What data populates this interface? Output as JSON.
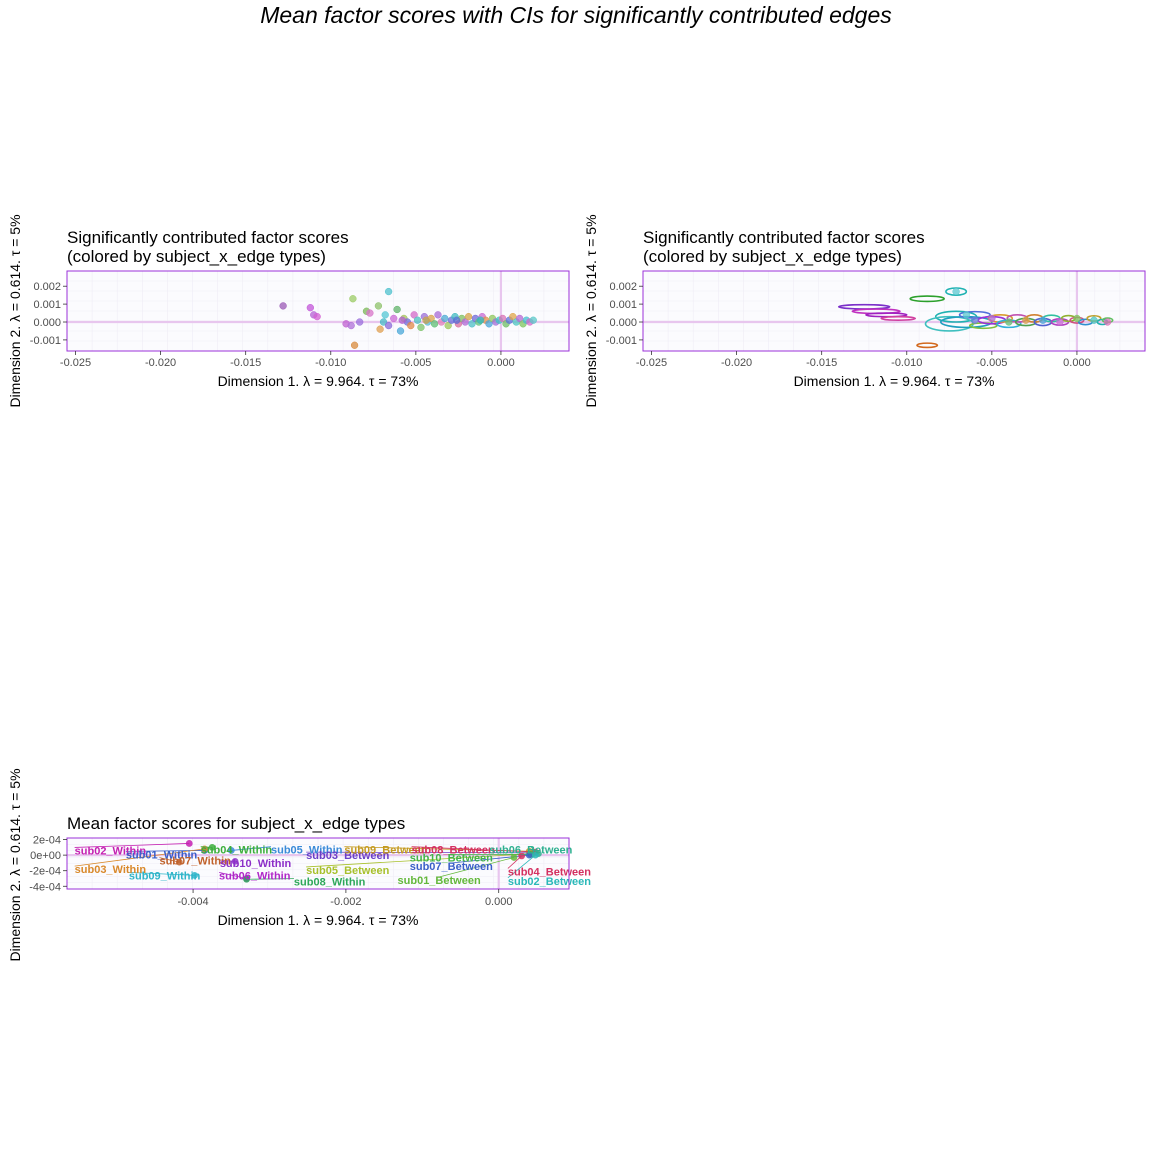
{
  "page_title": "Mean factor scores with CIs for significantly contributed edges",
  "colors": {
    "panel_border": "#9b30d9",
    "origin_line": "#e8c6ee",
    "grid": "#efedf6",
    "panel_bg": "#fbfbfe"
  },
  "chart_data": [
    {
      "type": "scatter",
      "title_lines": [
        "Significantly contributed factor scores",
        "(colored by subject_x_edge types)"
      ],
      "xlabel": "Dimension 1.   λ = 9.964.  τ = 73%",
      "ylabel": "Dimension 2.  λ = 0.614.  τ = 5%",
      "xlim": [
        -0.0255,
        0.004
      ],
      "ylim": [
        -0.00162,
        0.00285
      ],
      "xticks": [
        -0.025,
        -0.02,
        -0.015,
        -0.01,
        -0.005,
        0.0
      ],
      "xtick_labels": [
        "-0.025",
        "-0.020",
        "-0.015",
        "-0.010",
        "-0.005",
        "0.000"
      ],
      "yticks": [
        0.002,
        0.001,
        0.0,
        -0.001
      ],
      "ytick_labels": [
        "0.002",
        "0.001",
        "0.000",
        "-0.001"
      ],
      "grid": true,
      "points": [
        [
          -0.0128,
          0.0009,
          "#9b59b6"
        ],
        [
          -0.0112,
          0.0008,
          "#c356d9"
        ],
        [
          -0.011,
          0.0004,
          "#b45fd3"
        ],
        [
          -0.0108,
          0.0003,
          "#d35fd3"
        ],
        [
          -0.0087,
          0.0013,
          "#9ccc65"
        ],
        [
          -0.0091,
          -0.0001,
          "#c060d0"
        ],
        [
          -0.0088,
          -0.0002,
          "#b070d8"
        ],
        [
          -0.0086,
          -0.0013,
          "#d88a3c"
        ],
        [
          -0.0083,
          0.0,
          "#9b6fdc"
        ],
        [
          -0.0079,
          0.0006,
          "#7cb85a"
        ],
        [
          -0.0077,
          0.0005,
          "#d874c8"
        ],
        [
          -0.0072,
          0.0009,
          "#8dc16a"
        ],
        [
          -0.0071,
          -0.0004,
          "#e0a050"
        ],
        [
          -0.0069,
          0.0,
          "#46b7c4"
        ],
        [
          -0.0068,
          0.0004,
          "#56c7d4"
        ],
        [
          -0.0066,
          0.0017,
          "#4fc1ce"
        ],
        [
          -0.0066,
          -0.0002,
          "#8a6ad8"
        ],
        [
          -0.0063,
          0.0002,
          "#c96ad3"
        ],
        [
          -0.0061,
          0.0007,
          "#60b36a"
        ],
        [
          -0.0059,
          -0.0005,
          "#4aa8d8"
        ],
        [
          -0.0057,
          0.0002,
          "#a6c45a"
        ],
        [
          -0.0055,
          0.0,
          "#6f6cd6"
        ],
        [
          -0.0053,
          -0.0002,
          "#e08a4a"
        ],
        [
          -0.0051,
          0.0004,
          "#d36ac8"
        ],
        [
          -0.0049,
          0.0001,
          "#4bc1c0"
        ],
        [
          -0.0047,
          -0.0003,
          "#7ec46a"
        ],
        [
          -0.0045,
          0.0003,
          "#9b6fd8"
        ],
        [
          -0.0043,
          0.0,
          "#59b8d1"
        ],
        [
          -0.0041,
          0.0002,
          "#d8a34a"
        ],
        [
          -0.0039,
          -0.0001,
          "#5fbf74"
        ],
        [
          -0.0037,
          0.0004,
          "#a76ad5"
        ],
        [
          -0.0035,
          0.0,
          "#e07cb8"
        ],
        [
          -0.0033,
          0.0002,
          "#4ca9d3"
        ],
        [
          -0.0031,
          -0.0002,
          "#9cc85a"
        ],
        [
          -0.0029,
          0.0001,
          "#6a6fd8"
        ],
        [
          -0.0027,
          0.0003,
          "#3fb9c0"
        ],
        [
          -0.0025,
          -0.0001,
          "#d86f9b"
        ],
        [
          -0.0023,
          0.0002,
          "#7fbf5f"
        ],
        [
          -0.0021,
          0.0,
          "#b06ad3"
        ],
        [
          -0.0019,
          0.0003,
          "#d6a34a"
        ],
        [
          -0.0017,
          -0.0001,
          "#4dc0c7"
        ],
        [
          -0.0015,
          0.0002,
          "#7068d8"
        ],
        [
          -0.0013,
          0.0,
          "#5fc07a"
        ],
        [
          -0.0011,
          0.0003,
          "#c86ad3"
        ],
        [
          -0.0009,
          0.0001,
          "#e0904a"
        ],
        [
          -0.0007,
          -0.0001,
          "#4aa6d8"
        ],
        [
          -0.0005,
          0.0002,
          "#8fc75c"
        ],
        [
          -0.0003,
          0.0,
          "#a36fd6"
        ],
        [
          -0.0001,
          0.0001,
          "#3ec4c4"
        ],
        [
          0.0001,
          0.0002,
          "#d873b5"
        ],
        [
          0.0003,
          -0.0001,
          "#6fbf65"
        ],
        [
          0.0005,
          0.0001,
          "#5c73d9"
        ],
        [
          0.0007,
          0.0003,
          "#e0a54a"
        ],
        [
          0.0009,
          0.0,
          "#4cc6c2"
        ],
        [
          0.0011,
          0.0002,
          "#b76ad3"
        ],
        [
          0.0013,
          -0.0001,
          "#7fc55f"
        ],
        [
          0.0015,
          0.0001,
          "#46bcd0"
        ],
        [
          0.0017,
          0.0,
          "#d66ac8"
        ],
        [
          0.0019,
          0.0001,
          "#5ac8c8"
        ],
        [
          -0.0058,
          0.0001,
          "#b15fd0"
        ],
        [
          -0.0044,
          0.0001,
          "#c7a24e"
        ],
        [
          -0.0026,
          0.0001,
          "#5a6fd4"
        ],
        [
          -0.0012,
          0.0001,
          "#36b8b8"
        ]
      ]
    },
    {
      "type": "scatter",
      "title_lines": [
        "Significantly contributed factor scores",
        "(colored by subject_x_edge types)"
      ],
      "xlabel": "Dimension 1.   λ = 9.964.  τ = 73%",
      "ylabel": "Dimension 2.  λ = 0.614.  τ = 5%",
      "xlim": [
        -0.0255,
        0.004
      ],
      "ylim": [
        -0.00162,
        0.00285
      ],
      "xticks": [
        -0.025,
        -0.02,
        -0.015,
        -0.01,
        -0.005,
        0.0
      ],
      "xtick_labels": [
        "-0.025",
        "-0.020",
        "-0.015",
        "-0.010",
        "-0.005",
        "0.000"
      ],
      "yticks": [
        0.002,
        0.001,
        0.0,
        -0.001
      ],
      "ytick_labels": [
        "0.002",
        "0.001",
        "0.000",
        "-0.001"
      ],
      "grid": true,
      "ellipses": [
        [
          -0.0125,
          0.00085,
          0.0015,
          0.00012,
          "#7b2fc9"
        ],
        [
          -0.0118,
          0.0006,
          0.0014,
          0.00012,
          "#c030c0"
        ],
        [
          -0.0112,
          0.0004,
          0.0012,
          0.0001,
          "#a020c0"
        ],
        [
          -0.0105,
          0.0002,
          0.001,
          0.0001,
          "#d040a0"
        ],
        [
          -0.0088,
          0.0013,
          0.001,
          0.00015,
          "#2ca02c"
        ],
        [
          -0.0088,
          -0.0013,
          0.0006,
          0.00012,
          "#d2691e"
        ],
        [
          -0.0071,
          0.0017,
          0.0006,
          0.0002,
          "#20b2b2"
        ],
        [
          -0.0071,
          0.0003,
          0.0012,
          0.0003,
          "#20b2b2"
        ],
        [
          -0.0075,
          -0.0001,
          0.0014,
          0.0004,
          "#3fbfbf"
        ],
        [
          -0.0065,
          0.0,
          0.0015,
          0.0003,
          "#1f9fbf"
        ],
        [
          -0.006,
          0.0004,
          0.0009,
          0.00018,
          "#4f6fd9"
        ],
        [
          -0.0055,
          -0.0002,
          0.0008,
          0.00015,
          "#7fbf3f"
        ],
        [
          -0.005,
          0.0001,
          0.0008,
          0.0002,
          "#9b30d9"
        ],
        [
          -0.0045,
          0.0002,
          0.0007,
          0.0002,
          "#d99a30"
        ],
        [
          -0.004,
          -0.0001,
          0.0007,
          0.0002,
          "#30b0d9"
        ],
        [
          -0.0035,
          0.0002,
          0.0006,
          0.0002,
          "#c050b0"
        ],
        [
          -0.003,
          0.0,
          0.0006,
          0.0002,
          "#50a050"
        ],
        [
          -0.0025,
          0.0002,
          0.0005,
          0.0002,
          "#d08030"
        ],
        [
          -0.002,
          0.0,
          0.0005,
          0.0002,
          "#5060d0"
        ],
        [
          -0.0015,
          0.0002,
          0.0005,
          0.00018,
          "#30c0a0"
        ],
        [
          -0.001,
          0.0,
          0.0005,
          0.00018,
          "#b040c0"
        ],
        [
          -0.0005,
          0.0002,
          0.0004,
          0.00016,
          "#90b030"
        ],
        [
          0.0,
          0.0001,
          0.0004,
          0.00016,
          "#d05080"
        ],
        [
          0.0005,
          0.0,
          0.0004,
          0.00015,
          "#3090d0"
        ],
        [
          0.001,
          0.0002,
          0.0004,
          0.00015,
          "#c0a030"
        ],
        [
          0.0015,
          0.0,
          0.0003,
          0.00014,
          "#20b0b0"
        ],
        [
          0.0018,
          0.0001,
          0.0003,
          0.00012,
          "#60c060"
        ]
      ],
      "points": [
        [
          -0.0071,
          0.0017,
          "#5cc8d0"
        ],
        [
          -0.0065,
          0.0004,
          "#5cc8d0"
        ],
        [
          -0.006,
          0.0001,
          "#6c7fd9"
        ],
        [
          -0.005,
          0.0002,
          "#b06ad3"
        ],
        [
          -0.004,
          0.0,
          "#5fbf74"
        ],
        [
          -0.003,
          0.0001,
          "#d8a34a"
        ],
        [
          -0.002,
          0.0001,
          "#4aa6d8"
        ],
        [
          -0.001,
          0.0,
          "#c86ad3"
        ],
        [
          0.0,
          0.0002,
          "#7fc55f"
        ],
        [
          0.001,
          0.0001,
          "#4cc6c2"
        ],
        [
          0.0018,
          0.0,
          "#d873b5"
        ]
      ]
    },
    {
      "type": "scatter",
      "title_lines": [
        "Mean factor scores for subject_x_edge types"
      ],
      "xlabel": "Dimension 1.   λ = 9.964.  τ = 73%",
      "ylabel": "Dimension 2.  λ = 0.614.  τ = 5%",
      "xlim": [
        -0.00565,
        0.00092
      ],
      "ylim": [
        -0.000435,
        0.00022
      ],
      "xticks": [
        -0.004,
        -0.002,
        0.0
      ],
      "xtick_labels": [
        "-0.004",
        "-0.002",
        "0.000"
      ],
      "yticks": [
        0.0002,
        0.0,
        -0.0002,
        -0.0004
      ],
      "ytick_labels": [
        "2e-04",
        "0e+00",
        "-2e-04",
        "-4e-04"
      ],
      "grid": true,
      "points": [
        {
          "x": -0.00405,
          "y": 0.00015,
          "color": "#c41fb1",
          "label": "sub02_Within",
          "lx": -0.00555,
          "ly": 6e-05,
          "anchor": "start"
        },
        {
          "x": -0.00385,
          "y": 6e-05,
          "color": "#3a5fc8",
          "label": "sub01_Within",
          "lx": -0.00488,
          "ly": 1e-05,
          "anchor": "start"
        },
        {
          "x": -0.00418,
          "y": -9e-05,
          "color": "#c0612b",
          "label": "sub07_Within",
          "lx": -0.00444,
          "ly": -7e-05,
          "anchor": "start"
        },
        {
          "x": -0.00385,
          "y": 8e-05,
          "color": "#d9892b",
          "label": "sub03_Within",
          "lx": -0.00555,
          "ly": -0.00018,
          "anchor": "start"
        },
        {
          "x": -0.00398,
          "y": -0.00026,
          "color": "#2fb5c9",
          "label": "sub09_Within",
          "lx": -0.00484,
          "ly": -0.00026,
          "anchor": "start"
        },
        {
          "x": -0.00375,
          "y": 0.0001,
          "color": "#3cae3c",
          "label": "sub04_Within",
          "lx": -0.0039,
          "ly": 7e-05,
          "anchor": "start"
        },
        {
          "x": -0.0035,
          "y": 6e-05,
          "color": "#3a8ad8",
          "label": "sub05_Within",
          "lx": -0.00298,
          "ly": 7e-05,
          "anchor": "start"
        },
        {
          "x": -0.00345,
          "y": -8e-05,
          "color": "#8c2fc8",
          "label": "sub10_Within",
          "lx": -0.00365,
          "ly": -0.0001,
          "anchor": "start"
        },
        {
          "x": -0.0033,
          "y": -0.0003,
          "color": "#b028c8",
          "label": "sub06_Within",
          "lx": -0.00366,
          "ly": -0.00026,
          "anchor": "start"
        },
        {
          "x": -0.0033,
          "y": -0.00031,
          "color": "#2ea85a",
          "label": "sub08_Within",
          "lx": -0.00268,
          "ly": -0.00034,
          "anchor": "start"
        },
        {
          "x": 0.00045,
          "y": 3e-05,
          "color": "#6a3fc8",
          "label": "sub03_Between",
          "lx": -0.00252,
          "ly": 0.0,
          "anchor": "start"
        },
        {
          "x": 0.0004,
          "y": 5e-05,
          "color": "#c49a20",
          "label": "sub09_Between",
          "lx": -0.00202,
          "ly": 7e-05,
          "anchor": "start"
        },
        {
          "x": 0.00045,
          "y": 2e-05,
          "color": "#a8c02c",
          "label": "sub05_Between",
          "lx": -0.00252,
          "ly": -0.00019,
          "anchor": "start"
        },
        {
          "x": 0.00048,
          "y": 4e-05,
          "color": "#d43060",
          "label": "sub08_Between",
          "lx": -0.00114,
          "ly": 7e-05,
          "anchor": "start"
        },
        {
          "x": 0.00052,
          "y": 2e-05,
          "color": "#2fb090",
          "label": "sub06_Between",
          "lx": 0.00042,
          "ly": 7e-05,
          "anchor": "middle"
        },
        {
          "x": 0.00042,
          "y": 1e-05,
          "color": "#44b548",
          "label": "sub10_Between",
          "lx": -0.00062,
          "ly": -3e-05,
          "anchor": "middle"
        },
        {
          "x": 0.0004,
          "y": 0.0,
          "color": "#3a5fc8",
          "label": "sub07_Between",
          "lx": -0.00062,
          "ly": -0.00014,
          "anchor": "middle"
        },
        {
          "x": 0.0003,
          "y": -1e-05,
          "color": "#d43060",
          "label": "sub04_Between",
          "lx": 0.00012,
          "ly": -0.00021,
          "anchor": "start"
        },
        {
          "x": 0.0002,
          "y": -3e-05,
          "color": "#64b83c",
          "label": "sub01_Between",
          "lx": -0.00078,
          "ly": -0.00032,
          "anchor": "middle"
        },
        {
          "x": 0.00048,
          "y": 0.0,
          "color": "#2ab8b8",
          "label": "sub02_Between",
          "lx": 0.00012,
          "ly": -0.00033,
          "anchor": "start"
        }
      ]
    }
  ]
}
